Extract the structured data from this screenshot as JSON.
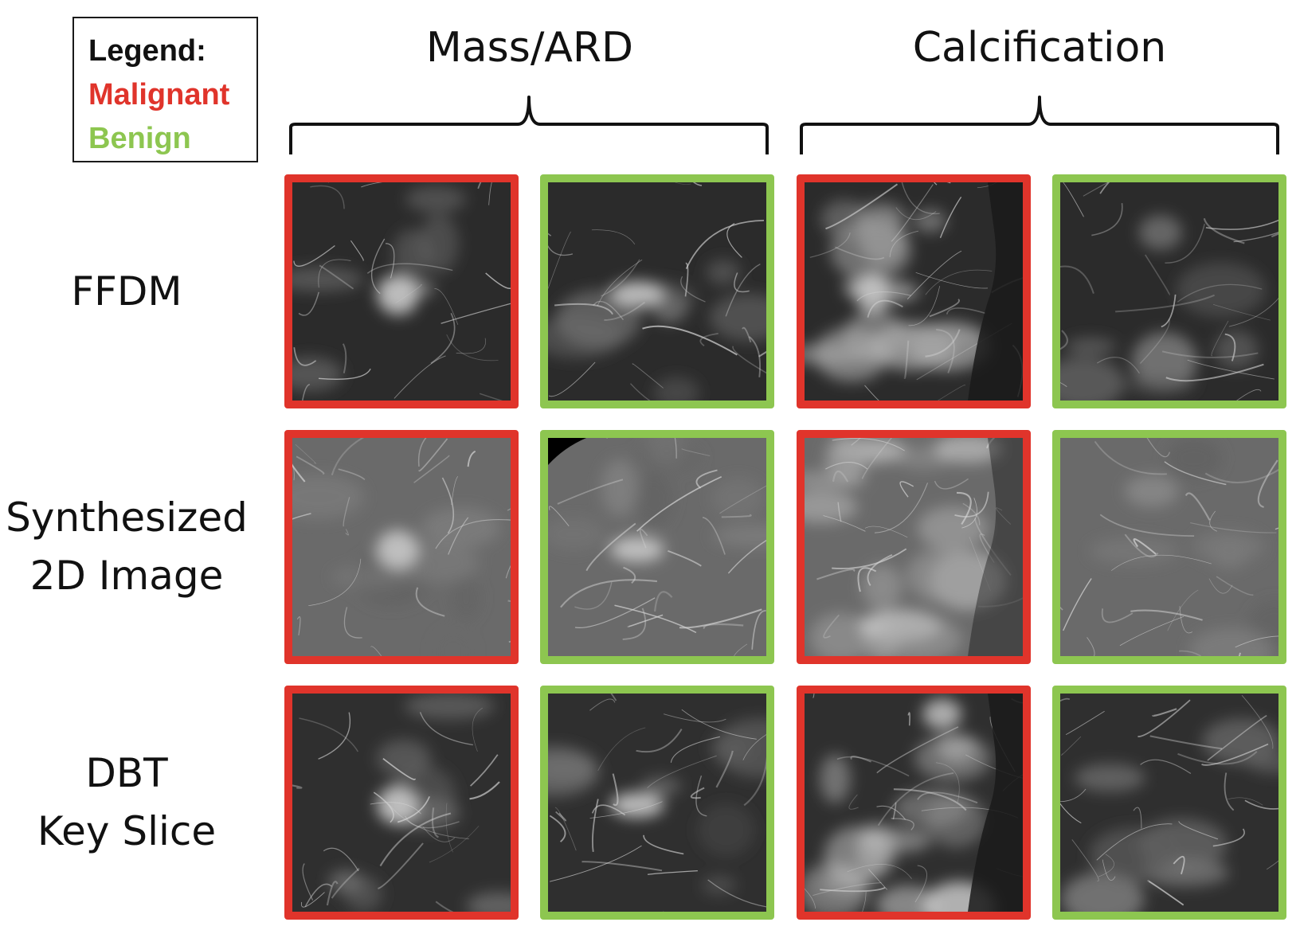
{
  "legend": {
    "title": "Legend:",
    "malignant": "Malignant",
    "benign": "Benign"
  },
  "columns": {
    "group1": "Mass/ARD",
    "group2": "Calcification"
  },
  "rows": {
    "ffdm": [
      "FFDM"
    ],
    "synth": [
      "Synthesized",
      "2D Image"
    ],
    "dbt": [
      "DBT",
      "Key Slice"
    ]
  },
  "colors": {
    "malignant": "#e0342b",
    "benign": "#8dc650"
  },
  "images": [
    {
      "row": "FFDM",
      "group": "Mass/ARD",
      "class": "Malignant"
    },
    {
      "row": "FFDM",
      "group": "Mass/ARD",
      "class": "Benign"
    },
    {
      "row": "FFDM",
      "group": "Calcification",
      "class": "Malignant"
    },
    {
      "row": "FFDM",
      "group": "Calcification",
      "class": "Benign"
    },
    {
      "row": "Synthesized 2D Image",
      "group": "Mass/ARD",
      "class": "Malignant"
    },
    {
      "row": "Synthesized 2D Image",
      "group": "Mass/ARD",
      "class": "Benign"
    },
    {
      "row": "Synthesized 2D Image",
      "group": "Calcification",
      "class": "Malignant"
    },
    {
      "row": "Synthesized 2D Image",
      "group": "Calcification",
      "class": "Benign"
    },
    {
      "row": "DBT Key Slice",
      "group": "Mass/ARD",
      "class": "Malignant"
    },
    {
      "row": "DBT Key Slice",
      "group": "Mass/ARD",
      "class": "Benign"
    },
    {
      "row": "DBT Key Slice",
      "group": "Calcification",
      "class": "Malignant"
    },
    {
      "row": "DBT Key Slice",
      "group": "Calcification",
      "class": "Benign"
    }
  ]
}
